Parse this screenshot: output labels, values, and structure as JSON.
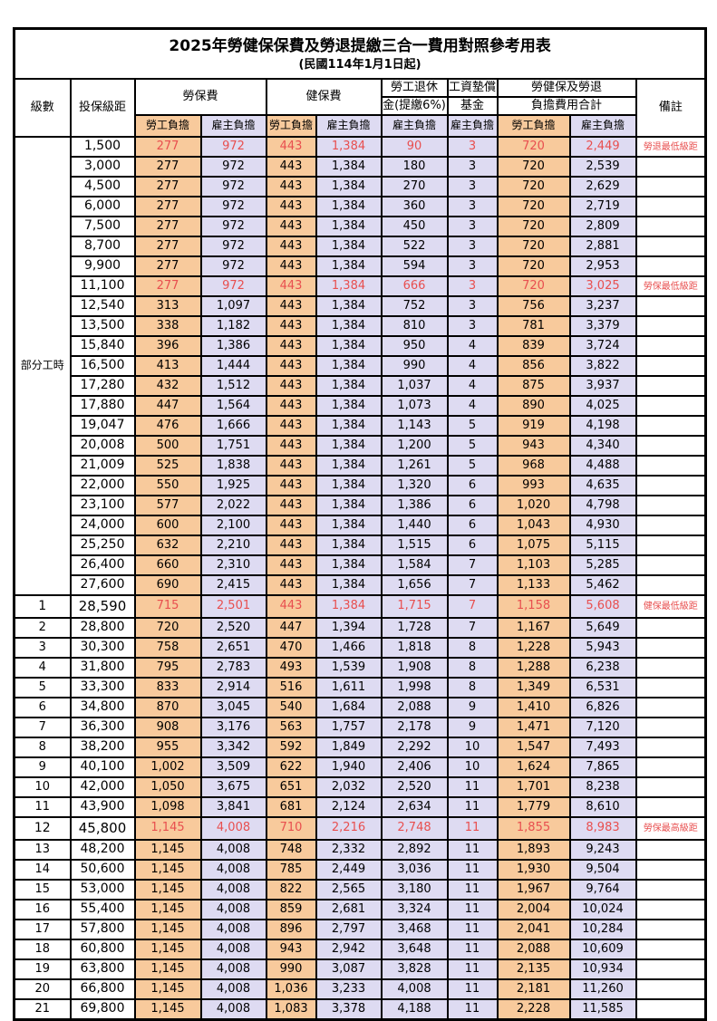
{
  "title": "2025年勞健保保費及勞退提繳三合一費用對照參考用表",
  "subtitle": "(民國114年1月1日起)",
  "colors": {
    "employee_bg": "#F8CA9C",
    "employer_bg": "#DEDBF2",
    "highlight_text": "#E84F4F",
    "note_text": "#F3837B",
    "border": "#000000",
    "text": "#000000"
  },
  "table": {
    "header": {
      "grade": "級數",
      "salary": "投保級距",
      "labor": "勞保費",
      "health": "健保費",
      "pension_line1": "勞工退休",
      "pension_line2": "金(提繳6%)",
      "wage_fund_line1": "工資墊償",
      "wage_fund_line2": "基金",
      "total_line1": "勞健保及勞退",
      "total_line2": "負擔費用合計",
      "note": "備註",
      "employee": "勞工負擔",
      "employer": "雇主負擔"
    },
    "part_time_label": "部分工時",
    "part_time_rowspan": 23,
    "value_columns": [
      "labor-employee",
      "labor-employer",
      "health-employee",
      "health-employer",
      "pension-employer",
      "wagefund-employer",
      "total-employee",
      "total-employer"
    ],
    "rows": [
      {
        "grade": "",
        "salary": "1,500",
        "values": [
          "277",
          "972",
          "443",
          "1,384",
          "90",
          "3",
          "720",
          "2,449"
        ],
        "note": "勞退最低級距",
        "highlight": true
      },
      {
        "grade": "",
        "salary": "3,000",
        "values": [
          "277",
          "972",
          "443",
          "1,384",
          "180",
          "3",
          "720",
          "2,539"
        ],
        "note": ""
      },
      {
        "grade": "",
        "salary": "4,500",
        "values": [
          "277",
          "972",
          "443",
          "1,384",
          "270",
          "3",
          "720",
          "2,629"
        ],
        "note": ""
      },
      {
        "grade": "",
        "salary": "6,000",
        "values": [
          "277",
          "972",
          "443",
          "1,384",
          "360",
          "3",
          "720",
          "2,719"
        ],
        "note": ""
      },
      {
        "grade": "",
        "salary": "7,500",
        "values": [
          "277",
          "972",
          "443",
          "1,384",
          "450",
          "3",
          "720",
          "2,809"
        ],
        "note": ""
      },
      {
        "grade": "",
        "salary": "8,700",
        "values": [
          "277",
          "972",
          "443",
          "1,384",
          "522",
          "3",
          "720",
          "2,881"
        ],
        "note": ""
      },
      {
        "grade": "",
        "salary": "9,900",
        "values": [
          "277",
          "972",
          "443",
          "1,384",
          "594",
          "3",
          "720",
          "2,953"
        ],
        "note": ""
      },
      {
        "grade": "",
        "salary": "11,100",
        "values": [
          "277",
          "972",
          "443",
          "1,384",
          "666",
          "3",
          "720",
          "3,025"
        ],
        "note": "勞保最低級距",
        "highlight": true
      },
      {
        "grade": "",
        "salary": "12,540",
        "values": [
          "313",
          "1,097",
          "443",
          "1,384",
          "752",
          "3",
          "756",
          "3,237"
        ],
        "note": ""
      },
      {
        "grade": "",
        "salary": "13,500",
        "values": [
          "338",
          "1,182",
          "443",
          "1,384",
          "810",
          "3",
          "781",
          "3,379"
        ],
        "note": ""
      },
      {
        "grade": "",
        "salary": "15,840",
        "values": [
          "396",
          "1,386",
          "443",
          "1,384",
          "950",
          "4",
          "839",
          "3,724"
        ],
        "note": ""
      },
      {
        "grade": "",
        "salary": "16,500",
        "values": [
          "413",
          "1,444",
          "443",
          "1,384",
          "990",
          "4",
          "856",
          "3,822"
        ],
        "note": ""
      },
      {
        "grade": "",
        "salary": "17,280",
        "values": [
          "432",
          "1,512",
          "443",
          "1,384",
          "1,037",
          "4",
          "875",
          "3,937"
        ],
        "note": ""
      },
      {
        "grade": "",
        "salary": "17,880",
        "values": [
          "447",
          "1,564",
          "443",
          "1,384",
          "1,073",
          "4",
          "890",
          "4,025"
        ],
        "note": ""
      },
      {
        "grade": "",
        "salary": "19,047",
        "values": [
          "476",
          "1,666",
          "443",
          "1,384",
          "1,143",
          "5",
          "919",
          "4,198"
        ],
        "note": ""
      },
      {
        "grade": "",
        "salary": "20,008",
        "values": [
          "500",
          "1,751",
          "443",
          "1,384",
          "1,200",
          "5",
          "943",
          "4,340"
        ],
        "note": ""
      },
      {
        "grade": "",
        "salary": "21,009",
        "values": [
          "525",
          "1,838",
          "443",
          "1,384",
          "1,261",
          "5",
          "968",
          "4,488"
        ],
        "note": ""
      },
      {
        "grade": "",
        "salary": "22,000",
        "values": [
          "550",
          "1,925",
          "443",
          "1,384",
          "1,320",
          "6",
          "993",
          "4,635"
        ],
        "note": ""
      },
      {
        "grade": "",
        "salary": "23,100",
        "values": [
          "577",
          "2,022",
          "443",
          "1,384",
          "1,386",
          "6",
          "1,020",
          "4,798"
        ],
        "note": ""
      },
      {
        "grade": "",
        "salary": "24,000",
        "values": [
          "600",
          "2,100",
          "443",
          "1,384",
          "1,440",
          "6",
          "1,043",
          "4,930"
        ],
        "note": ""
      },
      {
        "grade": "",
        "salary": "25,250",
        "values": [
          "632",
          "2,210",
          "443",
          "1,384",
          "1,515",
          "6",
          "1,075",
          "5,115"
        ],
        "note": ""
      },
      {
        "grade": "",
        "salary": "26,400",
        "values": [
          "660",
          "2,310",
          "443",
          "1,384",
          "1,584",
          "7",
          "1,103",
          "5,285"
        ],
        "note": ""
      },
      {
        "grade": "",
        "salary": "27,600",
        "values": [
          "690",
          "2,415",
          "443",
          "1,384",
          "1,656",
          "7",
          "1,133",
          "5,462"
        ],
        "note": ""
      },
      {
        "grade": "1",
        "salary": "28,590",
        "values": [
          "715",
          "2,501",
          "443",
          "1,384",
          "1,715",
          "7",
          "1,158",
          "5,608"
        ],
        "note": "健保最低級距",
        "highlight": true,
        "big": true
      },
      {
        "grade": "2",
        "salary": "28,800",
        "values": [
          "720",
          "2,520",
          "447",
          "1,394",
          "1,728",
          "7",
          "1,167",
          "5,649"
        ],
        "note": ""
      },
      {
        "grade": "3",
        "salary": "30,300",
        "values": [
          "758",
          "2,651",
          "470",
          "1,466",
          "1,818",
          "8",
          "1,228",
          "5,943"
        ],
        "note": ""
      },
      {
        "grade": "4",
        "salary": "31,800",
        "values": [
          "795",
          "2,783",
          "493",
          "1,539",
          "1,908",
          "8",
          "1,288",
          "6,238"
        ],
        "note": ""
      },
      {
        "grade": "5",
        "salary": "33,300",
        "values": [
          "833",
          "2,914",
          "516",
          "1,611",
          "1,998",
          "8",
          "1,349",
          "6,531"
        ],
        "note": ""
      },
      {
        "grade": "6",
        "salary": "34,800",
        "values": [
          "870",
          "3,045",
          "540",
          "1,684",
          "2,088",
          "9",
          "1,410",
          "6,826"
        ],
        "note": ""
      },
      {
        "grade": "7",
        "salary": "36,300",
        "values": [
          "908",
          "3,176",
          "563",
          "1,757",
          "2,178",
          "9",
          "1,471",
          "7,120"
        ],
        "note": ""
      },
      {
        "grade": "8",
        "salary": "38,200",
        "values": [
          "955",
          "3,342",
          "592",
          "1,849",
          "2,292",
          "10",
          "1,547",
          "7,493"
        ],
        "note": ""
      },
      {
        "grade": "9",
        "salary": "40,100",
        "values": [
          "1,002",
          "3,509",
          "622",
          "1,940",
          "2,406",
          "10",
          "1,624",
          "7,865"
        ],
        "note": ""
      },
      {
        "grade": "10",
        "salary": "42,000",
        "values": [
          "1,050",
          "3,675",
          "651",
          "2,032",
          "2,520",
          "11",
          "1,701",
          "8,238"
        ],
        "note": ""
      },
      {
        "grade": "11",
        "salary": "43,900",
        "values": [
          "1,098",
          "3,841",
          "681",
          "2,124",
          "2,634",
          "11",
          "1,779",
          "8,610"
        ],
        "note": ""
      },
      {
        "grade": "12",
        "salary": "45,800",
        "values": [
          "1,145",
          "4,008",
          "710",
          "2,216",
          "2,748",
          "11",
          "1,855",
          "8,983"
        ],
        "note": "勞保最高級距",
        "highlight": true,
        "big": true
      },
      {
        "grade": "13",
        "salary": "48,200",
        "values": [
          "1,145",
          "4,008",
          "748",
          "2,332",
          "2,892",
          "11",
          "1,893",
          "9,243"
        ],
        "note": ""
      },
      {
        "grade": "14",
        "salary": "50,600",
        "values": [
          "1,145",
          "4,008",
          "785",
          "2,449",
          "3,036",
          "11",
          "1,930",
          "9,504"
        ],
        "note": ""
      },
      {
        "grade": "15",
        "salary": "53,000",
        "values": [
          "1,145",
          "4,008",
          "822",
          "2,565",
          "3,180",
          "11",
          "1,967",
          "9,764"
        ],
        "note": ""
      },
      {
        "grade": "16",
        "salary": "55,400",
        "values": [
          "1,145",
          "4,008",
          "859",
          "2,681",
          "3,324",
          "11",
          "2,004",
          "10,024"
        ],
        "note": ""
      },
      {
        "grade": "17",
        "salary": "57,800",
        "values": [
          "1,145",
          "4,008",
          "896",
          "2,797",
          "3,468",
          "11",
          "2,041",
          "10,284"
        ],
        "note": ""
      },
      {
        "grade": "18",
        "salary": "60,800",
        "values": [
          "1,145",
          "4,008",
          "943",
          "2,942",
          "3,648",
          "11",
          "2,088",
          "10,609"
        ],
        "note": ""
      },
      {
        "grade": "19",
        "salary": "63,800",
        "values": [
          "1,145",
          "4,008",
          "990",
          "3,087",
          "3,828",
          "11",
          "2,135",
          "10,934"
        ],
        "note": ""
      },
      {
        "grade": "20",
        "salary": "66,800",
        "values": [
          "1,145",
          "4,008",
          "1,036",
          "3,233",
          "4,008",
          "11",
          "2,181",
          "11,260"
        ],
        "note": ""
      },
      {
        "grade": "21",
        "salary": "69,800",
        "values": [
          "1,145",
          "4,008",
          "1,083",
          "3,378",
          "4,188",
          "11",
          "2,228",
          "11,585"
        ],
        "note": ""
      }
    ]
  }
}
